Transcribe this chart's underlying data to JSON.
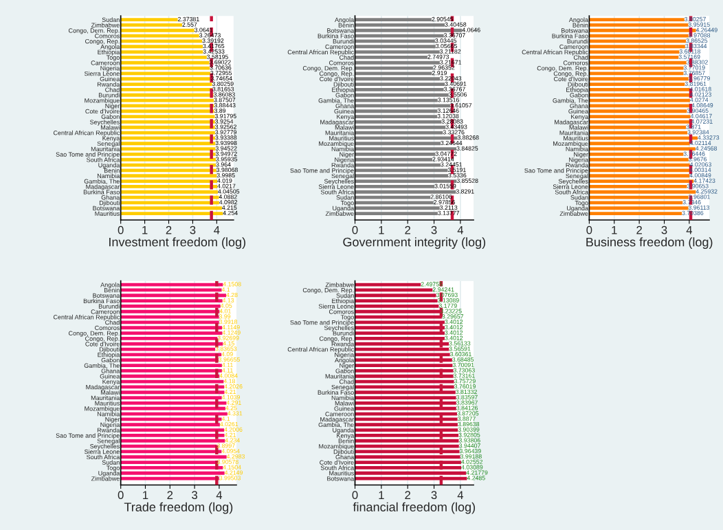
{
  "chart_data": [
    {
      "type": "bar",
      "orientation": "horizontal",
      "xlabel": "Investment freedom (log)",
      "color": "#ffcc00",
      "data_labels": true,
      "grid": "x",
      "xlim": [
        0,
        4.7
      ],
      "xticks": [
        0,
        1,
        2,
        3,
        4
      ],
      "categories": [
        "Sudan",
        "Zimbabwe",
        "Congo, Dem. Rep.",
        "Comoros",
        "Congo, Rep.",
        "Angola",
        "Ethiopia",
        "Togo",
        "Cameroon",
        "Nigeria",
        "Sierra Leone",
        "Guinea",
        "Rwanda",
        "Chad",
        "Burundi",
        "Mozambique",
        "Niger",
        "Cote d'Ivoire",
        "Gabon",
        "Seychelles",
        "Malawi",
        "Central African Republic",
        "Kenya",
        "Senegal",
        "Mauritania",
        "Sao Tome and Principe",
        "South Africa",
        "Uganda",
        "Benin",
        "Namibia",
        "Gambia, The",
        "Madagascar",
        "Burkina Faso",
        "Ghana",
        "Djibouti",
        "Botswana",
        "Mauritius"
      ],
      "values": [
        2.37381,
        2.557,
        3.0641,
        3.26473,
        3.39192,
        3.41765,
        3.42533,
        3.58195,
        3.69022,
        3.70636,
        3.72955,
        3.74654,
        3.80259,
        3.81653,
        3.86083,
        3.87507,
        3.88443,
        3.89,
        3.91795,
        3.9254,
        3.92562,
        3.92779,
        3.93388,
        3.93998,
        3.94522,
        3.94972,
        3.95935,
        3.964,
        3.98068,
        3.9985,
        4.019,
        4.0217,
        4.04505,
        4.0882,
        4.0982,
        4.215,
        4.254
      ],
      "ref_lines": [
        {
          "axis": "x",
          "value": 3.78,
          "color": "#c8143c",
          "line_style": "dashed"
        }
      ]
    },
    {
      "type": "bar",
      "orientation": "horizontal",
      "xlabel": "Government integrity (log)",
      "color": "#808080",
      "data_labels": true,
      "grid": "x",
      "xlim": [
        0,
        4.5
      ],
      "xticks": [
        0,
        1,
        2,
        3,
        4
      ],
      "categories": [
        "Angola",
        "Benin",
        "Botswana",
        "Burkina Faso",
        "Burundi",
        "Cameroon",
        "Central African Republic",
        "Chad",
        "Comoros",
        "Congo, Dem. Rep.",
        "Congo, Rep.",
        "Cote d'Ivoire",
        "Djibouti",
        "Ethiopia",
        "Gabon",
        "Gambia, The",
        "Ghana",
        "Guinea",
        "Kenya",
        "Madagascar",
        "Malawi",
        "Mauritania",
        "Mauritius",
        "Mozambique",
        "Namibia",
        "Niger",
        "Nigeria",
        "Rwanda",
        "Sao Tome and Principe",
        "Senegal",
        "Seychelles",
        "Sierra Leone",
        "South Africa",
        "Sudan",
        "Togo",
        "Uganda",
        "Zimbabwe"
      ],
      "values": [
        2.90545,
        3.40458,
        4.0646,
        3.36707,
        3.03445,
        3.05665,
        3.21182,
        2.74973,
        3.21671,
        2.96352,
        2.919,
        3.22043,
        3.40691,
        3.36767,
        3.5506,
        3.13516,
        3.61057,
        3.12646,
        3.12038,
        3.28083,
        3.43493,
        3.33276,
        3.88268,
        3.24644,
        3.84825,
        3.04772,
        2.93414,
        3.24451,
        3.5191,
        3.5336,
        3.85528,
        3.01559,
        3.8291,
        2.86106,
        2.97856,
        3.2113,
        3.13777
      ],
      "ref_lines": [
        {
          "axis": "x",
          "value": 3.69,
          "color": "#c8143c",
          "line_style": "dashed"
        }
      ]
    },
    {
      "type": "bar",
      "orientation": "horizontal",
      "xlabel": "Business freedom (log)",
      "color": "#ff8000",
      "data_labels": true,
      "grid": "x",
      "xlim": [
        0,
        4.8
      ],
      "xticks": [
        0,
        1,
        2,
        3,
        4
      ],
      "categories": [
        "Angola",
        "Benin",
        "Botswana",
        "Burkina Faso",
        "Burundi",
        "Cameroon",
        "Central African Republic",
        "Chad",
        "Comoros",
        "Congo, Dem. Rep.",
        "Congo, Rep.",
        "Cote d'Ivoire",
        "Djibouti",
        "Ethiopia",
        "Gabon",
        "Gambia, The",
        "Ghana",
        "Guinea",
        "Kenya",
        "Madagascar",
        "Malawi",
        "Mauritania",
        "Mauritius",
        "Mozambique",
        "Namibia",
        "Niger",
        "Nigeria",
        "Rwanda",
        "Sao Tome and Principe",
        "Senegal",
        "Seychelles",
        "Sierra Leone",
        "South Africa",
        "Sudan",
        "Togo",
        "Uganda",
        "Zimbabwe"
      ],
      "values": [
        3.80257,
        3.95915,
        4.26449,
        3.97088,
        3.86525,
        3.83344,
        3.60118,
        3.57169,
        3.88302,
        3.77019,
        3.76857,
        3.96779,
        3.81961,
        4.01618,
        4.02123,
        4.0274,
        4.08649,
        3.90465,
        4.04617,
        4.07231,
        3.871,
        3.92384,
        4.33273,
        4.02114,
        4.24568,
        3.76446,
        3.9676,
        4.02063,
        4.00314,
        4.00849,
        4.17423,
        3.90653,
        4.25932,
        3.96801,
        3.7346,
        3.96113,
        3.70386
      ],
      "ref_lines": [
        {
          "axis": "x",
          "value": 4.06,
          "color": "#c8143c",
          "line_style": "dashed"
        }
      ]
    },
    {
      "type": "bar",
      "orientation": "horizontal",
      "xlabel": "Trade freedom (log)",
      "color": "#f5106e",
      "data_labels": true,
      "grid": "x",
      "xlim": [
        0,
        4.7
      ],
      "xticks": [
        0,
        1,
        2,
        3,
        4
      ],
      "categories": [
        "Angola",
        "Benin",
        "Botswana",
        "Burkina Faso",
        "Burundi",
        "Cameroon",
        "Central African Republic",
        "Chad",
        "Comoros",
        "Congo, Dem. Rep.",
        "Congo, Rep.",
        "Cote d'Ivoire",
        "Djibouti",
        "Ethiopia",
        "Gabon",
        "Gambia, The",
        "Ghana",
        "Guinea",
        "Kenya",
        "Madagascar",
        "Malawi",
        "Mauritania",
        "Mauritius",
        "Mozambique",
        "Namibia",
        "Niger",
        "Nigeria",
        "Rwanda",
        "Sao Tome and Principe",
        "Senegal",
        "Seychelles",
        "Sierra Leone",
        "South Africa",
        "Sudan",
        "Togo",
        "Uganda",
        "Zimbabwe"
      ],
      "values": [
        4.1508,
        4.1,
        4.28,
        4.13,
        4.05,
        4.01,
        3.99,
        3.9918,
        4.1149,
        4.1249,
        3.92699,
        4.15,
        3.83653,
        4.09,
        3.96655,
        4.11,
        4.11,
        4.0084,
        4.18,
        4.2026,
        4.21,
        4.1039,
        4.291,
        4.25,
        4.331,
        4.1,
        4.0261,
        4.2006,
        4.21,
        4.234,
        3.8997,
        4.0954,
        4.2983,
        3.90578,
        4.1504,
        4.2149,
        3.99503
      ],
      "ref_lines": [
        {
          "axis": "x",
          "value": 3.9,
          "color": "#c8143c",
          "line_style": "dashed"
        }
      ]
    },
    {
      "type": "bar",
      "orientation": "horizontal",
      "xlabel": "financial freedom (log)",
      "color": "#c8103c",
      "data_labels": true,
      "grid": "x",
      "xlim": [
        0,
        4.5
      ],
      "xticks": [
        0,
        1,
        2,
        3,
        4
      ],
      "categories": [
        "Zimbabwe",
        "Congo, Dem. Rep.",
        "Sudan",
        "Ethiopia",
        "Sierra Leone",
        "Comoros",
        "Togo",
        "Sao Tome and Principe",
        "Seychelles",
        "Burundi",
        "Congo, Rep.",
        "Rwanda",
        "Central African Republic",
        "Nigeria",
        "Angola",
        "Niger",
        "Gabon",
        "Mauritania",
        "Chad",
        "Senegal",
        "Burkina Faso",
        "Namibia",
        "Malawi",
        "Guinea",
        "Cameroon",
        "Madagascar",
        "Gambia, The",
        "Uganda",
        "Kenya",
        "Benin",
        "Mozambique",
        "Djibouti",
        "Ghana",
        "Cote d'Ivoire",
        "South Africa",
        "Mauritius",
        "Botswana"
      ],
      "values": [
        2.49755,
        2.94241,
        3.07693,
        3.13089,
        3.1779,
        3.23225,
        3.29657,
        3.4012,
        3.4012,
        3.4012,
        3.4012,
        3.56133,
        3.56591,
        3.60361,
        3.68485,
        3.70091,
        3.73063,
        3.73161,
        3.75729,
        3.76019,
        3.81332,
        3.83597,
        3.83967,
        3.84126,
        3.87205,
        3.8877,
        3.89638,
        3.90399,
        3.92805,
        3.93806,
        3.94407,
        3.96439,
        3.99188,
        4.02552,
        4.03089,
        4.21779,
        4.2485
      ],
      "ref_lines": [
        {
          "axis": "x",
          "value": 3.27,
          "color": "#c8143c",
          "line_style": "dashed"
        }
      ]
    }
  ]
}
